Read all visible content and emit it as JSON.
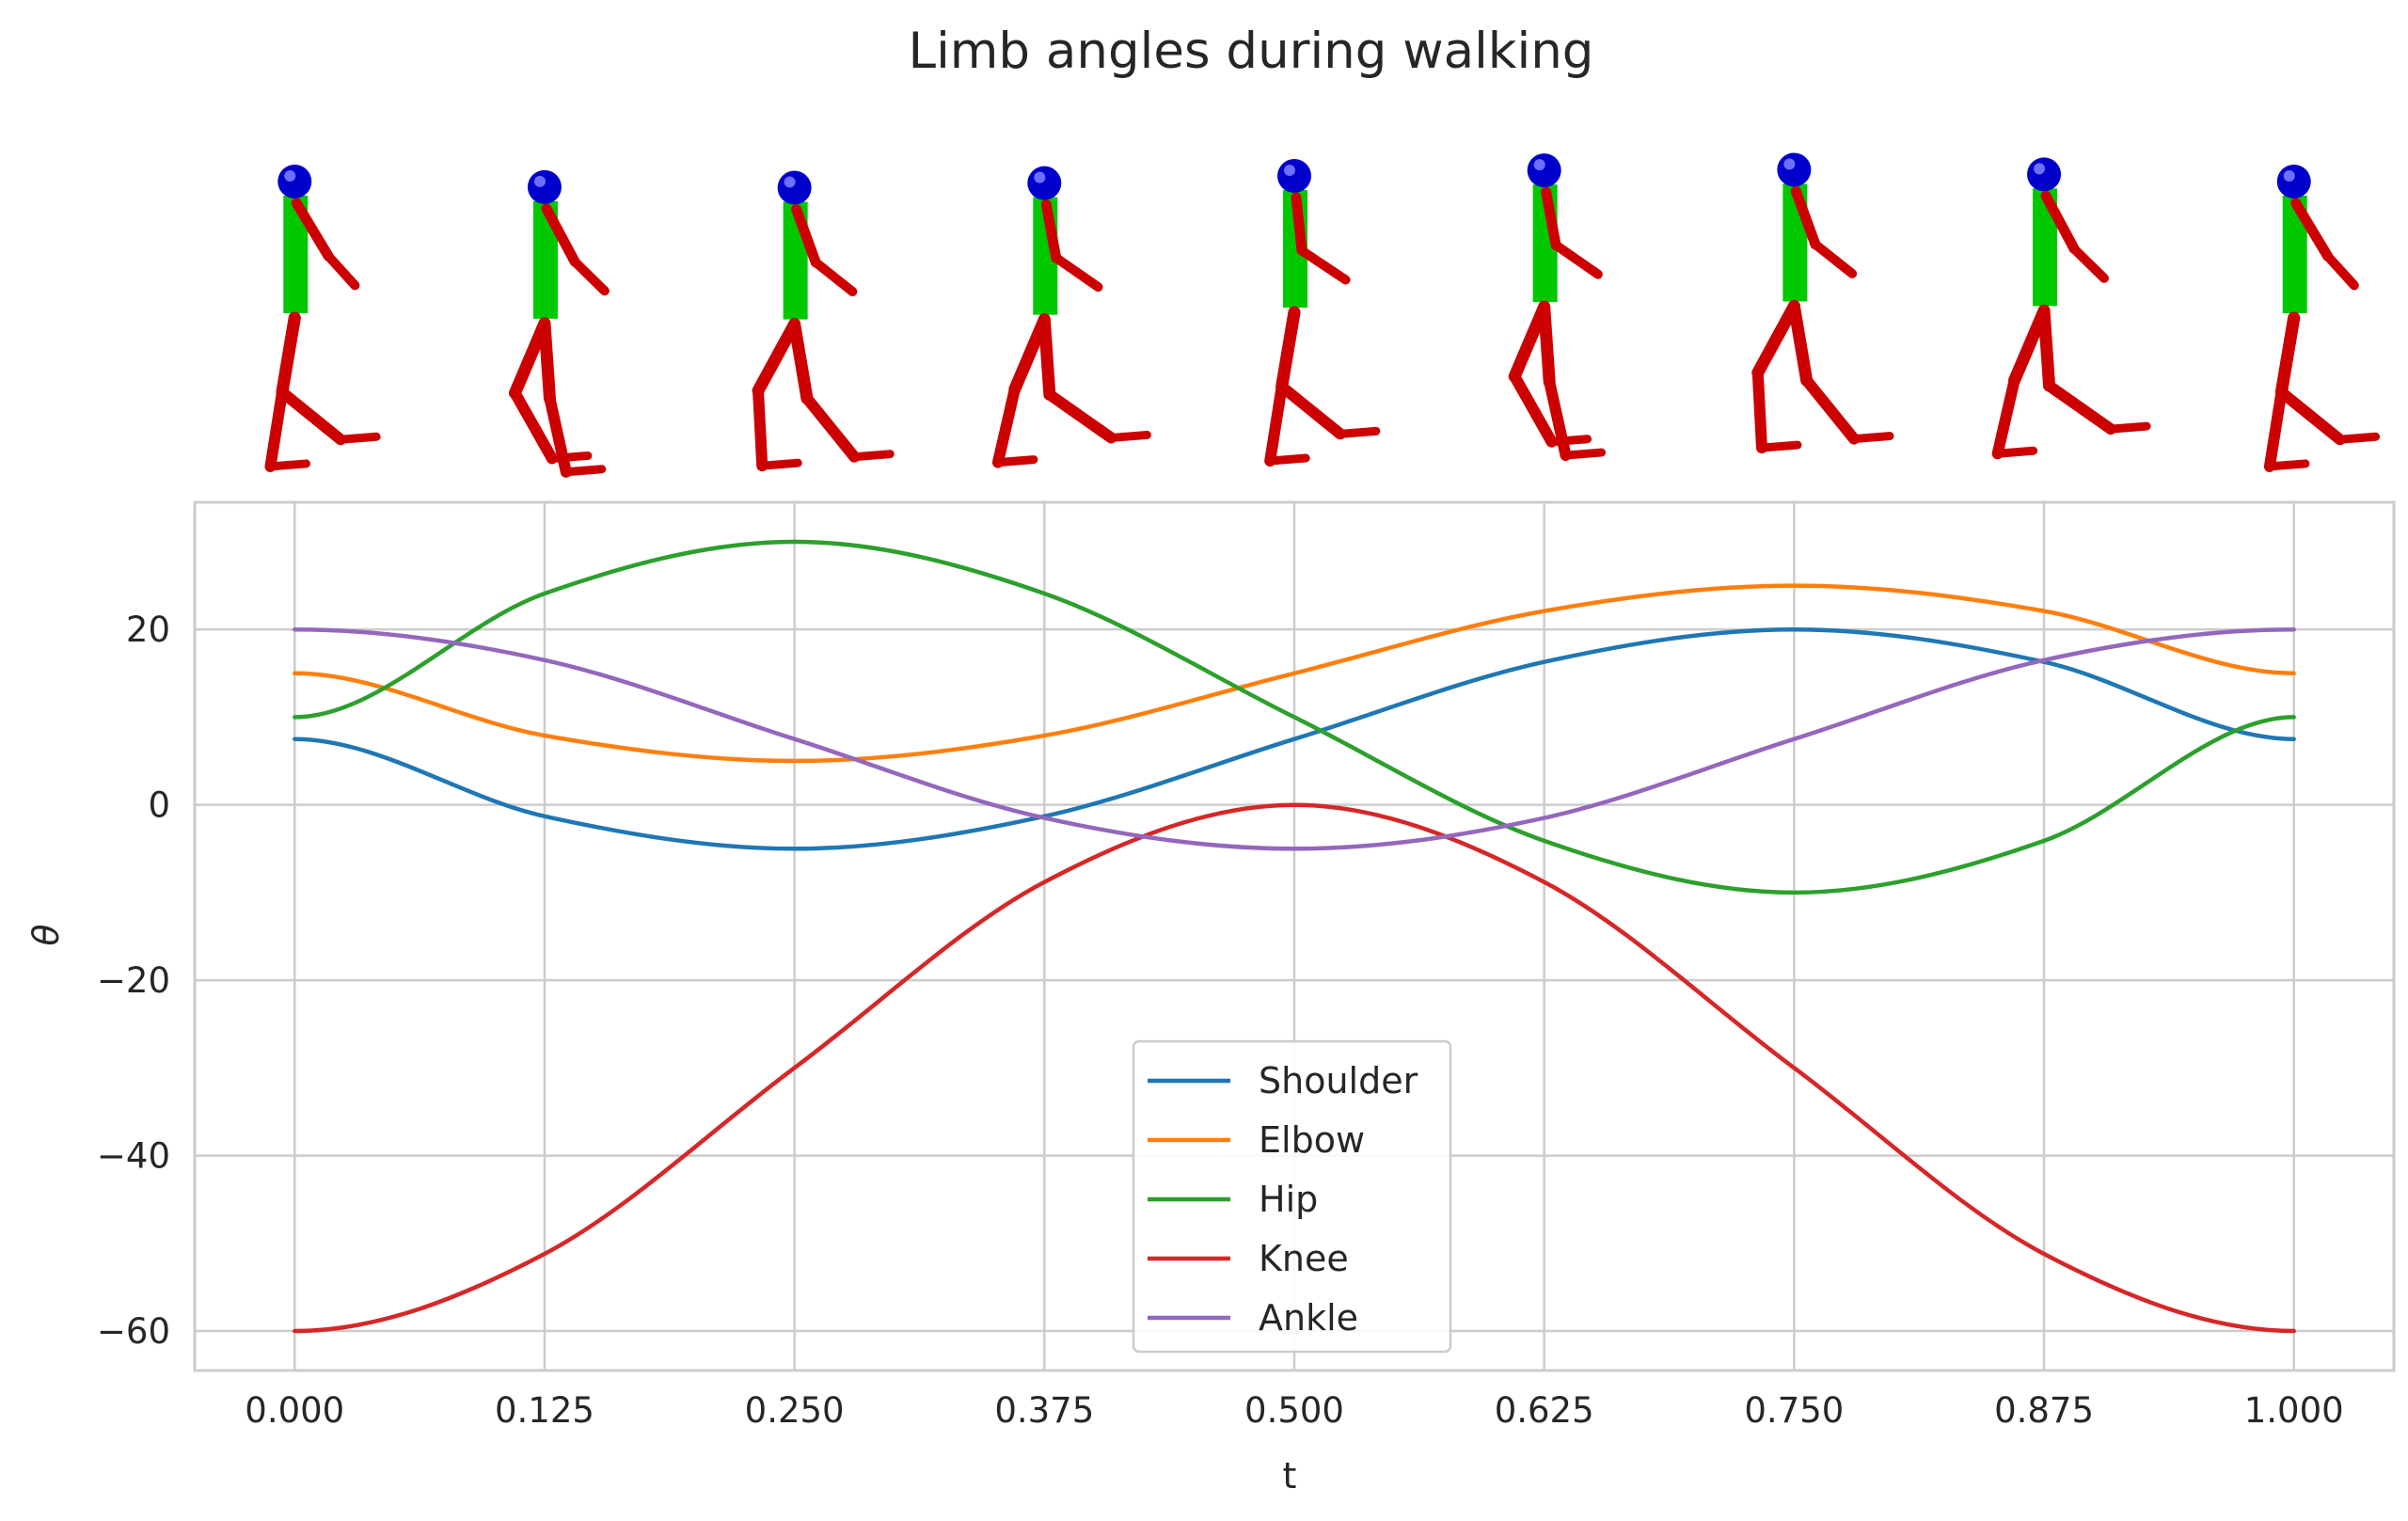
{
  "chart_data": {
    "type": "line",
    "title": "Limb angles during walking",
    "xlabel": "t",
    "ylabel": "θ",
    "xlim": [
      -0.05,
      1.05
    ],
    "ylim": [
      -64.5,
      34.5
    ],
    "x_ticks": [
      "0.000",
      "0.125",
      "0.250",
      "0.375",
      "0.500",
      "0.625",
      "0.750",
      "0.875",
      "1.000"
    ],
    "y_ticks": [
      "−60",
      "−40",
      "−20",
      "0",
      "20"
    ],
    "grid": true,
    "legend_position": "lower-center",
    "x": [
      0,
      0.125,
      0.25,
      0.375,
      0.5,
      0.625,
      0.75,
      0.875,
      1.0
    ],
    "series": [
      {
        "name": "Shoulder",
        "color": "#1f77b4",
        "values": [
          7.5,
          -1.3,
          -5.0,
          -1.3,
          7.5,
          16.3,
          20.0,
          16.3,
          7.5
        ]
      },
      {
        "name": "Elbow",
        "color": "#ff7f0e",
        "values": [
          15.0,
          7.9,
          5.0,
          7.9,
          15.0,
          22.1,
          25.0,
          22.1,
          15.0
        ]
      },
      {
        "name": "Hip",
        "color": "#2ca02c",
        "values": [
          10.0,
          24.1,
          30.0,
          24.1,
          10.0,
          -4.1,
          -10.0,
          -4.1,
          10.0
        ]
      },
      {
        "name": "Knee",
        "color": "#d62728",
        "values": [
          -60.0,
          -51.2,
          -30.0,
          -8.8,
          0.0,
          -8.8,
          -30.0,
          -51.2,
          -60.0
        ]
      },
      {
        "name": "Ankle",
        "color": "#9467bd",
        "values": [
          20.0,
          16.5,
          7.5,
          -1.5,
          -5.0,
          -1.5,
          7.5,
          16.5,
          20.0
        ]
      }
    ],
    "figures": {
      "count": 9,
      "colors": {
        "head": "#0000cc",
        "torso": "#00c800",
        "limbs": "#cc0000"
      }
    }
  }
}
